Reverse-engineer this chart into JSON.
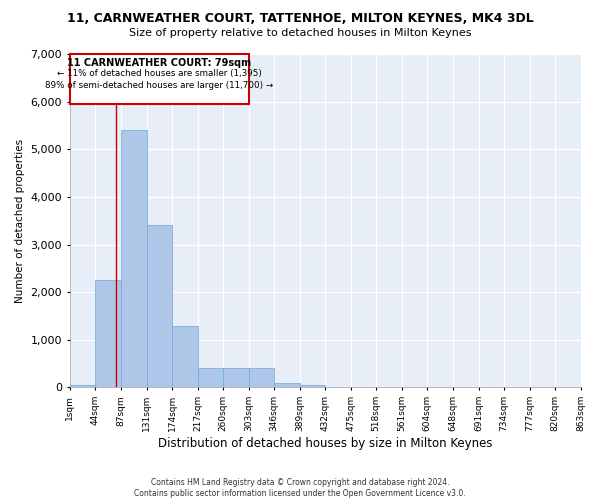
{
  "title": "11, CARNWEATHER COURT, TATTENHOE, MILTON KEYNES, MK4 3DL",
  "subtitle": "Size of property relative to detached houses in Milton Keynes",
  "xlabel": "Distribution of detached houses by size in Milton Keynes",
  "ylabel": "Number of detached properties",
  "bar_color": "#aec6e8",
  "bar_edge_color": "#6aaad4",
  "background_color": "#e8eef8",
  "grid_color": "#ffffff",
  "annotation_box_color": "#cc0000",
  "annotation_line_color": "#cc0000",
  "footer_line1": "Contains HM Land Registry data © Crown copyright and database right 2024.",
  "footer_line2": "Contains public sector information licensed under the Open Government Licence v3.0.",
  "annotation_title": "11 CARNWEATHER COURT: 79sqm",
  "annotation_line2": "← 11% of detached houses are smaller (1,395)",
  "annotation_line3": "89% of semi-detached houses are larger (11,700) →",
  "property_size_sqm": 79,
  "bin_edges": [
    1,
    44,
    87,
    131,
    174,
    217,
    260,
    303,
    346,
    389,
    432,
    475,
    518,
    561,
    604,
    648,
    691,
    734,
    777,
    820,
    863
  ],
  "bin_labels": [
    "1sqm",
    "44sqm",
    "87sqm",
    "131sqm",
    "174sqm",
    "217sqm",
    "260sqm",
    "303sqm",
    "346sqm",
    "389sqm",
    "432sqm",
    "475sqm",
    "518sqm",
    "561sqm",
    "604sqm",
    "648sqm",
    "691sqm",
    "734sqm",
    "777sqm",
    "820sqm",
    "863sqm"
  ],
  "counts": [
    50,
    2250,
    5400,
    3400,
    1300,
    400,
    400,
    400,
    100,
    50,
    10,
    5,
    2,
    1,
    0,
    0,
    0,
    0,
    0,
    0
  ],
  "ylim": [
    0,
    7000
  ],
  "yticks": [
    0,
    1000,
    2000,
    3000,
    4000,
    5000,
    6000,
    7000
  ]
}
